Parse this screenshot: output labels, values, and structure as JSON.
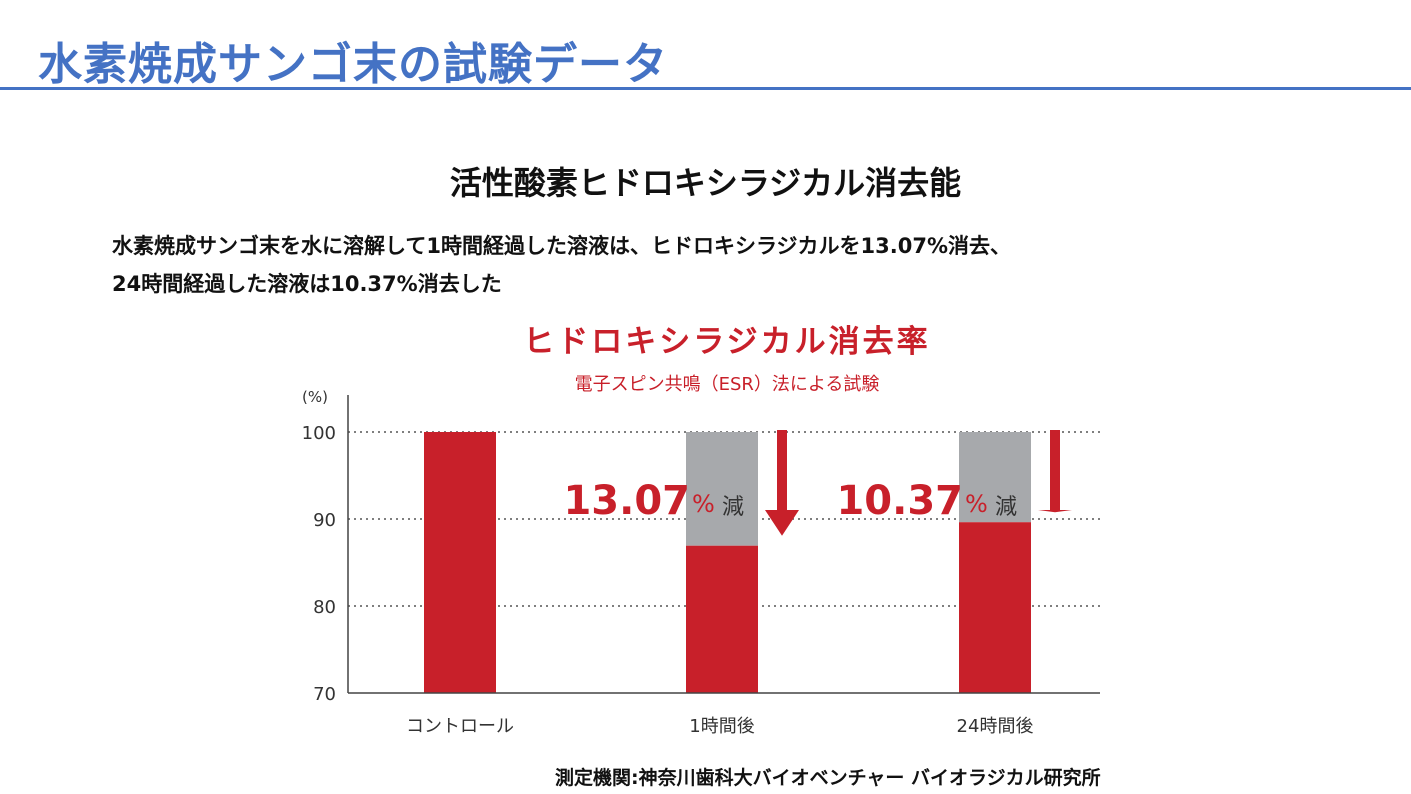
{
  "slide": {
    "title": "水素焼成サンゴ末の試験データ",
    "subtitle": "活性酸素ヒドロキシラジカル消去能",
    "description": [
      "水素焼成サンゴ末を水に溶解して1時間経過した溶液は、ヒドロキシラジカルを13.07%消去、",
      "24時間経過した溶液は10.37%消去した"
    ],
    "footer": "測定機関:神奈川歯科大バイオベンチャー バイオラジカル研究所",
    "title_color": "#4472C4"
  },
  "chart_data": {
    "type": "bar",
    "title": "ヒドロキシラジカル消去率",
    "subtitle": "電子スピン共鳴（ESR）法による試験",
    "ylabel": "(%)",
    "ylim": [
      70,
      100
    ],
    "yticks": [
      "70",
      "80",
      "90",
      "100"
    ],
    "grid": true,
    "categories": [
      "コントロール",
      "1時間後",
      "24時間後"
    ],
    "values": [
      100,
      86.93,
      89.63
    ],
    "reductions": [
      null,
      13.07,
      10.37
    ],
    "annotations": [
      null,
      {
        "value": "13.07",
        "unit": "%",
        "suffix": "減"
      },
      {
        "value": "10.37",
        "unit": "%",
        "suffix": "減"
      }
    ],
    "colors": {
      "bar": "#C8202A",
      "reduction": "#A7A9AC",
      "text": "#C8202A"
    }
  }
}
